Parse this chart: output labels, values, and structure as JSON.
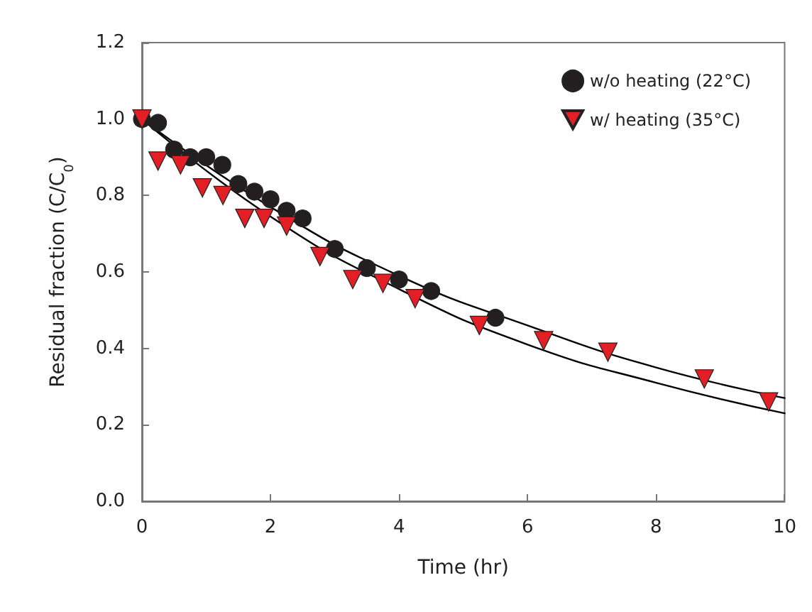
{
  "chart_data": {
    "type": "scatter",
    "xlabel": "Time (hr)",
    "ylabel": "Residual fraction (C/C$_{0}$)",
    "xlim": [
      0,
      10
    ],
    "xticks": [
      0,
      2,
      4,
      6,
      8,
      10
    ],
    "ylim": [
      0,
      1.2
    ],
    "yticks": [
      {
        "value": 0,
        "label": "0.0"
      },
      0.2,
      0.4,
      0.6,
      0.8,
      {
        "value": 1,
        "label": "1.0"
      },
      1.2
    ],
    "grid": false,
    "legend": "top right",
    "series": [
      {
        "name": "w/o heating (22°C)",
        "color": "#231f20",
        "marker": "circle",
        "x": [
          0,
          0.25,
          0.5,
          0.75,
          1.0,
          1.25,
          1.5,
          1.75,
          2.0,
          2.25,
          2.5,
          3.0,
          3.5,
          4.0,
          4.5,
          5.5
        ],
        "values": [
          1.0,
          0.99,
          0.92,
          0.9,
          0.9,
          0.88,
          0.83,
          0.81,
          0.79,
          0.76,
          0.74,
          0.66,
          0.61,
          0.58,
          0.55,
          0.48
        ]
      },
      {
        "name": "w/ heating (35°C)",
        "color": "#e31e24",
        "marker": "triangle",
        "x": [
          0,
          0.25,
          0.6,
          0.94,
          1.26,
          1.6,
          1.9,
          2.25,
          2.77,
          3.28,
          3.75,
          4.25,
          5.25,
          6.25,
          7.25,
          8.75,
          9.75
        ],
        "values": [
          1.0,
          0.89,
          0.88,
          0.82,
          0.8,
          0.74,
          0.74,
          0.72,
          0.64,
          0.58,
          0.57,
          0.53,
          0.46,
          0.42,
          0.39,
          0.32,
          0.26
        ]
      },
      {
        "type": "line",
        "color": "#000000",
        "marker": "none",
        "line_style": "solid",
        "x": [
          0,
          2,
          4,
          6,
          8,
          10
        ],
        "values": [
          1.0,
          0.77,
          0.59,
          0.46,
          0.35,
          0.27
        ]
      },
      {
        "type": "line",
        "color": "#000000",
        "marker": "none",
        "line_style": "solid",
        "x": [
          0,
          2,
          4,
          6,
          8,
          10
        ],
        "values": [
          1.0,
          0.745,
          0.555,
          0.41,
          0.31,
          0.23
        ]
      }
    ]
  }
}
